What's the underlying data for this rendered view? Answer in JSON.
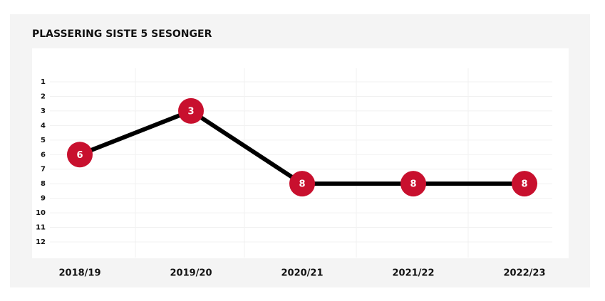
{
  "chart_data": {
    "type": "line",
    "title": "PLASSERING SISTE 5 SESONGER",
    "categories": [
      "2018/19",
      "2019/20",
      "2020/21",
      "2021/22",
      "2022/23"
    ],
    "values": [
      6,
      3,
      8,
      8,
      8
    ],
    "color": "#000000",
    "marker_color": "#c8102e",
    "ylim": [
      1,
      12
    ],
    "yticks": [
      1,
      2,
      3,
      4,
      5,
      6,
      7,
      8,
      9,
      10,
      11,
      12
    ],
    "inverted": true,
    "grid": true,
    "data_labels": true
  }
}
